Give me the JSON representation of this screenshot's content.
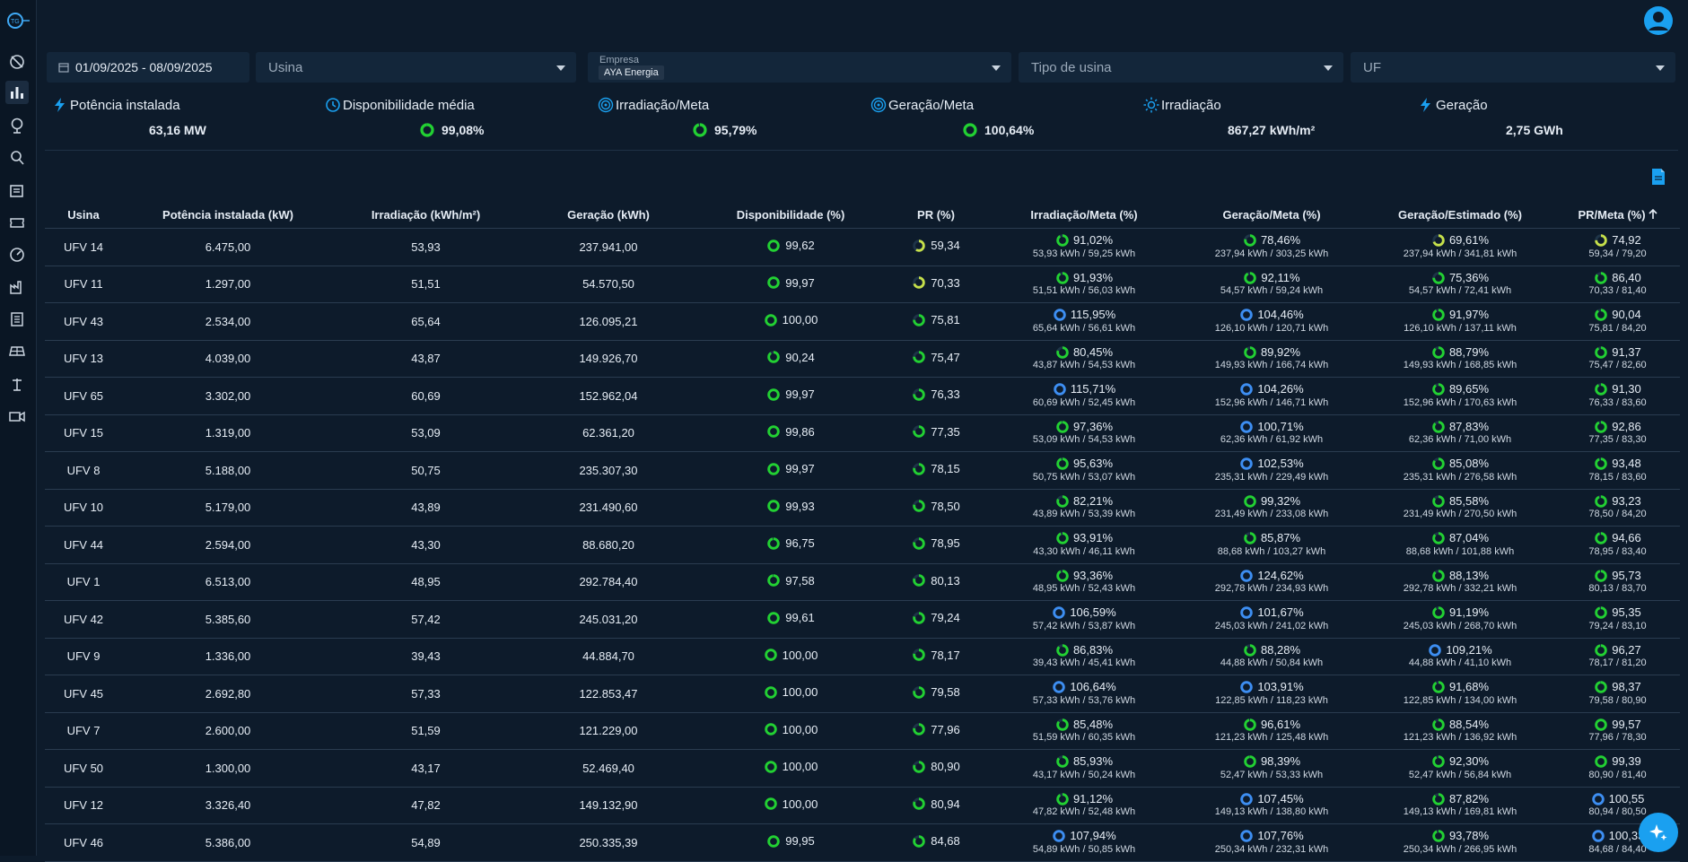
{
  "app": {
    "logo_text": ""
  },
  "filters": {
    "date_range": "01/09/2025 - 08/09/2025",
    "usina_placeholder": "Usina",
    "empresa_label": "Empresa",
    "empresa_chip": "AYA Energia",
    "tipo_placeholder": "Tipo de usina",
    "uf_placeholder": "UF"
  },
  "kpis": [
    {
      "title": "Potência instalada",
      "value": "63,16 MW",
      "icon": "bolt-icon"
    },
    {
      "title": "Disponibilidade média",
      "value": "99,08%",
      "icon": "clock-history-icon",
      "ring": 0.99
    },
    {
      "title": "Irradiação/Meta",
      "value": "95,79%",
      "icon": "target-icon",
      "ring": 0.96
    },
    {
      "title": "Geração/Meta",
      "value": "100,64%",
      "icon": "target-icon",
      "ring": 1.0
    },
    {
      "title": "Irradiação",
      "value": "867,27 kWh/m²",
      "icon": "sun-icon"
    },
    {
      "title": "Geração",
      "value": "2,75 GWh",
      "icon": "bolt-icon"
    }
  ],
  "colors": {
    "green": "#22d132",
    "blue": "#3d8ef2",
    "yellow": "#c6e04a",
    "track": "#1e3448"
  },
  "table": {
    "headers": [
      "Usina",
      "Potência instalada (kW)",
      "Irradiação (kWh/m²)",
      "Geração (kWh)",
      "Disponibilidade (%)",
      "PR (%)",
      "Irradiação/Meta (%)",
      "Geração/Meta (%)",
      "Geração/Estimado (%)",
      "PR/Meta (%)"
    ],
    "rows": [
      [
        "UFV 14",
        "6.475,00",
        "53,93",
        "237.941,00",
        "99,62",
        "59,34",
        "91,02%",
        "53,93 kWh / 59,25 kWh",
        "78,46%",
        "237,94 kWh / 303,25 kWh",
        "69,61%",
        "237,94 kWh / 341,81 kWh",
        "74,92",
        "59,34 / 79,20"
      ],
      [
        "UFV 11",
        "1.297,00",
        "51,51",
        "54.570,50",
        "99,97",
        "70,33",
        "91,93%",
        "51,51 kWh / 56,03 kWh",
        "92,11%",
        "54,57 kWh / 59,24 kWh",
        "75,36%",
        "54,57 kWh / 72,41 kWh",
        "86,40",
        "70,33 / 81,40"
      ],
      [
        "UFV 43",
        "2.534,00",
        "65,64",
        "126.095,21",
        "100,00",
        "75,81",
        "115,95%",
        "65,64 kWh / 56,61 kWh",
        "104,46%",
        "126,10 kWh / 120,71 kWh",
        "91,97%",
        "126,10 kWh / 137,11 kWh",
        "90,04",
        "75,81 / 84,20"
      ],
      [
        "UFV 13",
        "4.039,00",
        "43,87",
        "149.926,70",
        "90,24",
        "75,47",
        "80,45%",
        "43,87 kWh / 54,53 kWh",
        "89,92%",
        "149,93 kWh / 166,74 kWh",
        "88,79%",
        "149,93 kWh / 168,85 kWh",
        "91,37",
        "75,47 / 82,60"
      ],
      [
        "UFV 65",
        "3.302,00",
        "60,69",
        "152.962,04",
        "99,97",
        "76,33",
        "115,71%",
        "60,69 kWh / 52,45 kWh",
        "104,26%",
        "152,96 kWh / 146,71 kWh",
        "89,65%",
        "152,96 kWh / 170,63 kWh",
        "91,30",
        "76,33 / 83,60"
      ],
      [
        "UFV 15",
        "1.319,00",
        "53,09",
        "62.361,20",
        "99,86",
        "77,35",
        "97,36%",
        "53,09 kWh / 54,53 kWh",
        "100,71%",
        "62,36 kWh / 61,92 kWh",
        "87,83%",
        "62,36 kWh / 71,00 kWh",
        "92,86",
        "77,35 / 83,30"
      ],
      [
        "UFV 8",
        "5.188,00",
        "50,75",
        "235.307,30",
        "99,97",
        "78,15",
        "95,63%",
        "50,75 kWh / 53,07 kWh",
        "102,53%",
        "235,31 kWh / 229,49 kWh",
        "85,08%",
        "235,31 kWh / 276,58 kWh",
        "93,48",
        "78,15 / 83,60"
      ],
      [
        "UFV 10",
        "5.179,00",
        "43,89",
        "231.490,60",
        "99,93",
        "78,50",
        "82,21%",
        "43,89 kWh / 53,39 kWh",
        "99,32%",
        "231,49 kWh / 233,08 kWh",
        "85,58%",
        "231,49 kWh / 270,50 kWh",
        "93,23",
        "78,50 / 84,20"
      ],
      [
        "UFV 44",
        "2.594,00",
        "43,30",
        "88.680,20",
        "96,75",
        "78,95",
        "93,91%",
        "43,30 kWh / 46,11 kWh",
        "85,87%",
        "88,68 kWh / 103,27 kWh",
        "87,04%",
        "88,68 kWh / 101,88 kWh",
        "94,66",
        "78,95 / 83,40"
      ],
      [
        "UFV 1",
        "6.513,00",
        "48,95",
        "292.784,40",
        "97,58",
        "80,13",
        "93,36%",
        "48,95 kWh / 52,43 kWh",
        "124,62%",
        "292,78 kWh / 234,93 kWh",
        "88,13%",
        "292,78 kWh / 332,21 kWh",
        "95,73",
        "80,13 / 83,70"
      ],
      [
        "UFV 42",
        "5.385,60",
        "57,42",
        "245.031,20",
        "99,61",
        "79,24",
        "106,59%",
        "57,42 kWh / 53,87 kWh",
        "101,67%",
        "245,03 kWh / 241,02 kWh",
        "91,19%",
        "245,03 kWh / 268,70 kWh",
        "95,35",
        "79,24 / 83,10"
      ],
      [
        "UFV 9",
        "1.336,00",
        "39,43",
        "44.884,70",
        "100,00",
        "78,17",
        "86,83%",
        "39,43 kWh / 45,41 kWh",
        "88,28%",
        "44,88 kWh / 50,84 kWh",
        "109,21%",
        "44,88 kWh / 41,10 kWh",
        "96,27",
        "78,17 / 81,20"
      ],
      [
        "UFV 45",
        "2.692,80",
        "57,33",
        "122.853,47",
        "100,00",
        "79,58",
        "106,64%",
        "57,33 kWh / 53,76 kWh",
        "103,91%",
        "122,85 kWh / 118,23 kWh",
        "91,68%",
        "122,85 kWh / 134,00 kWh",
        "98,37",
        "79,58 / 80,90"
      ],
      [
        "UFV 7",
        "2.600,00",
        "51,59",
        "121.229,00",
        "100,00",
        "77,96",
        "85,48%",
        "51,59 kWh / 60,35 kWh",
        "96,61%",
        "121,23 kWh / 125,48 kWh",
        "88,54%",
        "121,23 kWh / 136,92 kWh",
        "99,57",
        "77,96 / 78,30"
      ],
      [
        "UFV 50",
        "1.300,00",
        "43,17",
        "52.469,40",
        "100,00",
        "80,90",
        "85,93%",
        "43,17 kWh / 50,24 kWh",
        "98,39%",
        "52,47 kWh / 53,33 kWh",
        "92,30%",
        "52,47 kWh / 56,84 kWh",
        "99,39",
        "80,90 / 81,40"
      ],
      [
        "UFV 12",
        "3.326,40",
        "47,82",
        "149.132,90",
        "100,00",
        "80,94",
        "91,12%",
        "47,82 kWh / 52,48 kWh",
        "107,45%",
        "149,13 kWh / 138,80 kWh",
        "87,82%",
        "149,13 kWh / 169,81 kWh",
        "100,55",
        "80,94 / 80,50"
      ],
      [
        "UFV 46",
        "5.386,00",
        "54,89",
        "250.335,39",
        "99,95",
        "84,68",
        "107,94%",
        "54,89 kWh / 50,85 kWh",
        "107,76%",
        "250,34 kWh / 232,31 kWh",
        "93,78%",
        "250,34 kWh / 266,95 kWh",
        "100,33",
        "84,68 / 84,40"
      ]
    ]
  }
}
